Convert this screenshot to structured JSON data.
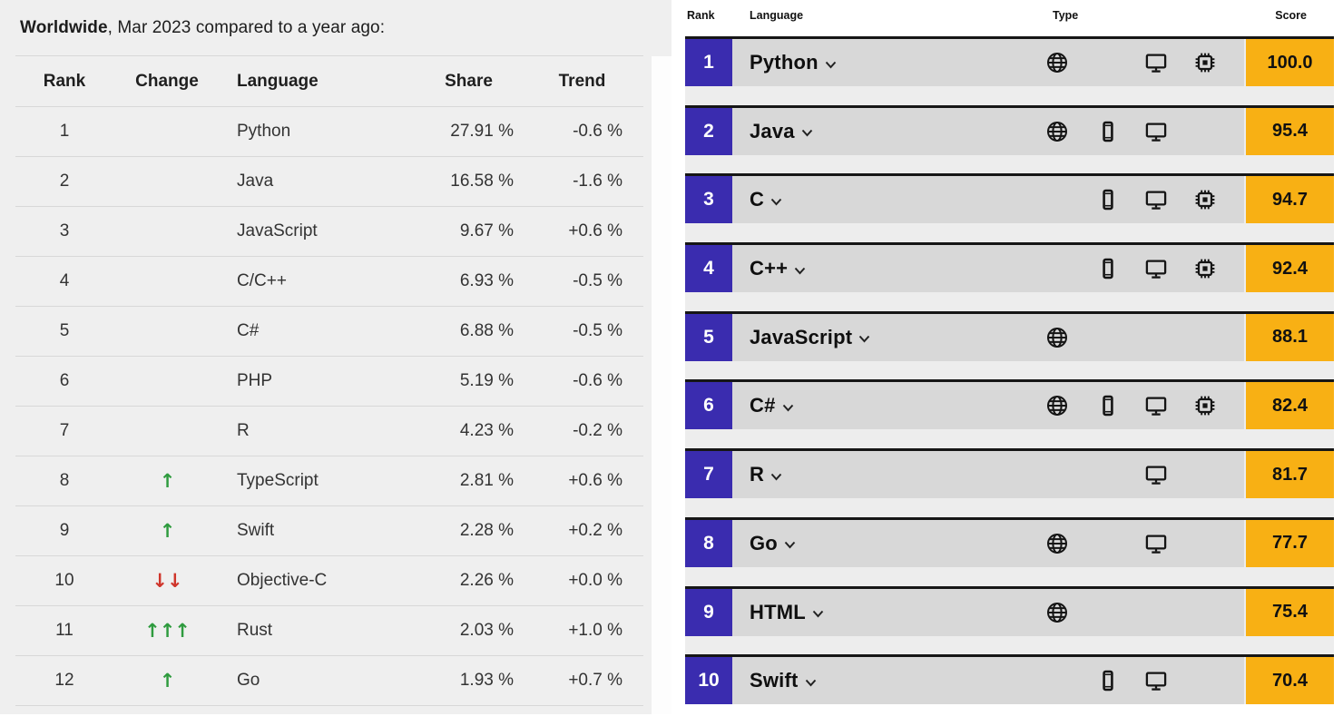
{
  "pypl": {
    "title_bold": "Worldwide",
    "title_rest": ", Mar 2023 compared to a year ago:",
    "columns": [
      "Rank",
      "Change",
      "Language",
      "Share",
      "Trend"
    ],
    "arrow_colors": {
      "up": "#2e9b3e",
      "down": "#cf352b"
    },
    "rows": [
      {
        "rank": "1",
        "change": "",
        "dir": "",
        "language": "Python",
        "share": "27.91 %",
        "trend": "-0.6 %"
      },
      {
        "rank": "2",
        "change": "",
        "dir": "",
        "language": "Java",
        "share": "16.58 %",
        "trend": "-1.6 %"
      },
      {
        "rank": "3",
        "change": "",
        "dir": "",
        "language": "JavaScript",
        "share": "9.67 %",
        "trend": "+0.6 %"
      },
      {
        "rank": "4",
        "change": "",
        "dir": "",
        "language": "C/C++",
        "share": "6.93 %",
        "trend": "-0.5 %"
      },
      {
        "rank": "5",
        "change": "",
        "dir": "",
        "language": "C#",
        "share": "6.88 %",
        "trend": "-0.5 %"
      },
      {
        "rank": "6",
        "change": "",
        "dir": "",
        "language": "PHP",
        "share": "5.19 %",
        "trend": "-0.6 %"
      },
      {
        "rank": "7",
        "change": "",
        "dir": "",
        "language": "R",
        "share": "4.23 %",
        "trend": "-0.2 %"
      },
      {
        "rank": "8",
        "change": "↑",
        "dir": "up",
        "language": "TypeScript",
        "share": "2.81 %",
        "trend": "+0.6 %"
      },
      {
        "rank": "9",
        "change": "↑",
        "dir": "up",
        "language": "Swift",
        "share": "2.28 %",
        "trend": "+0.2 %"
      },
      {
        "rank": "10",
        "change": "↓↓",
        "dir": "down",
        "language": "Objective-C",
        "share": "2.26 %",
        "trend": "+0.0 %"
      },
      {
        "rank": "11",
        "change": "↑↑↑",
        "dir": "up",
        "language": "Rust",
        "share": "2.03 %",
        "trend": "+1.0 %"
      },
      {
        "rank": "12",
        "change": "↑",
        "dir": "up",
        "language": "Go",
        "share": "1.93 %",
        "trend": "+0.7 %"
      }
    ]
  },
  "spectrum": {
    "columns": [
      "Rank",
      "Language",
      "Type",
      "Score"
    ],
    "colors": {
      "rank_bg": "#3a2caf",
      "score_bg": "#f8b014",
      "row_bg": "#d8d8d8",
      "row_border": "#161616"
    },
    "type_icon_names": [
      "web-icon",
      "mobile-icon",
      "desktop-icon",
      "embedded-icon"
    ],
    "rows": [
      {
        "rank": "1",
        "language": "Python",
        "types": [
          "web",
          "desktop",
          "embedded"
        ],
        "score": "100.0"
      },
      {
        "rank": "2",
        "language": "Java",
        "types": [
          "web",
          "mobile",
          "desktop"
        ],
        "score": "95.4"
      },
      {
        "rank": "3",
        "language": "C",
        "types": [
          "mobile",
          "desktop",
          "embedded"
        ],
        "score": "94.7"
      },
      {
        "rank": "4",
        "language": "C++",
        "types": [
          "mobile",
          "desktop",
          "embedded"
        ],
        "score": "92.4"
      },
      {
        "rank": "5",
        "language": "JavaScript",
        "types": [
          "web"
        ],
        "score": "88.1"
      },
      {
        "rank": "6",
        "language": "C#",
        "types": [
          "web",
          "mobile",
          "desktop",
          "embedded"
        ],
        "score": "82.4"
      },
      {
        "rank": "7",
        "language": "R",
        "types": [
          "desktop"
        ],
        "score": "81.7"
      },
      {
        "rank": "8",
        "language": "Go",
        "types": [
          "web",
          "desktop"
        ],
        "score": "77.7"
      },
      {
        "rank": "9",
        "language": "HTML",
        "types": [
          "web"
        ],
        "score": "75.4"
      },
      {
        "rank": "10",
        "language": "Swift",
        "types": [
          "mobile",
          "desktop"
        ],
        "score": "70.4"
      }
    ]
  },
  "chart_data": [
    {
      "type": "table",
      "title": "Worldwide, Mar 2023 compared to a year ago:",
      "columns": [
        "Rank",
        "Change",
        "Language",
        "Share",
        "Trend"
      ],
      "rows": [
        [
          "1",
          "",
          "Python",
          "27.91 %",
          "-0.6 %"
        ],
        [
          "2",
          "",
          "Java",
          "16.58 %",
          "-1.6 %"
        ],
        [
          "3",
          "",
          "JavaScript",
          "9.67 %",
          "+0.6 %"
        ],
        [
          "4",
          "",
          "C/C++",
          "6.93 %",
          "-0.5 %"
        ],
        [
          "5",
          "",
          "C#",
          "6.88 %",
          "-0.5 %"
        ],
        [
          "6",
          "",
          "PHP",
          "5.19 %",
          "-0.6 %"
        ],
        [
          "7",
          "",
          "R",
          "4.23 %",
          "-0.2 %"
        ],
        [
          "8",
          "↑",
          "TypeScript",
          "2.81 %",
          "+0.6 %"
        ],
        [
          "9",
          "↑",
          "Swift",
          "2.28 %",
          "+0.2 %"
        ],
        [
          "10",
          "↓↓",
          "Objective-C",
          "2.26 %",
          "+0.0 %"
        ],
        [
          "11",
          "↑↑↑",
          "Rust",
          "2.03 %",
          "+1.0 %"
        ],
        [
          "12",
          "↑",
          "Go",
          "1.93 %",
          "+0.7 %"
        ]
      ]
    },
    {
      "type": "table",
      "title": "",
      "columns": [
        "Rank",
        "Language",
        "Type",
        "Score"
      ],
      "rows": [
        [
          "1",
          "Python",
          "web, desktop, embedded",
          100.0
        ],
        [
          "2",
          "Java",
          "web, mobile, desktop",
          95.4
        ],
        [
          "3",
          "C",
          "mobile, desktop, embedded",
          94.7
        ],
        [
          "4",
          "C++",
          "mobile, desktop, embedded",
          92.4
        ],
        [
          "5",
          "JavaScript",
          "web",
          88.1
        ],
        [
          "6",
          "C#",
          "web, mobile, desktop, embedded",
          82.4
        ],
        [
          "7",
          "R",
          "desktop",
          81.7
        ],
        [
          "8",
          "Go",
          "web, desktop",
          77.7
        ],
        [
          "9",
          "HTML",
          "web",
          75.4
        ],
        [
          "10",
          "Swift",
          "mobile, desktop",
          70.4
        ]
      ]
    }
  ]
}
